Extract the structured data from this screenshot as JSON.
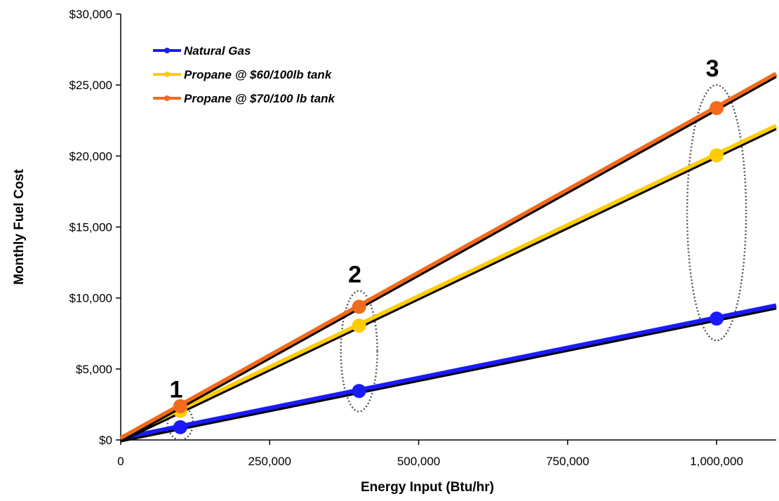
{
  "chart_data": {
    "type": "line",
    "xlabel": "Energy Input (Btu/hr)",
    "ylabel": "Monthly Fuel Cost",
    "xlim": [
      0,
      1100000
    ],
    "ylim": [
      0,
      30000
    ],
    "x_ticks": [
      0,
      250000,
      500000,
      750000,
      1000000
    ],
    "x_tick_labels": [
      "0",
      "250,000",
      "500,000",
      "750,000",
      "1,000,000"
    ],
    "y_ticks": [
      0,
      5000,
      10000,
      15000,
      20000,
      25000,
      30000
    ],
    "y_tick_labels": [
      "$0",
      "$5,000",
      "$10,000",
      "$15,000",
      "$20,000",
      "$25,000",
      "$30,000"
    ],
    "grid": false,
    "legend_position": "top-left",
    "series": [
      {
        "name": "Natural Gas",
        "color": "#1a1aff",
        "x": [
          0,
          100000,
          400000,
          1000000,
          1100000
        ],
        "y": [
          0,
          850,
          3400,
          8500,
          9350
        ],
        "markers_at": [
          100000,
          400000,
          1000000
        ]
      },
      {
        "name": "Propane @ $60/100lb tank",
        "color": "#ffcc00",
        "x": [
          0,
          100000,
          400000,
          1000000,
          1100000
        ],
        "y": [
          0,
          2000,
          8000,
          20000,
          22000
        ],
        "markers_at": [
          100000,
          400000,
          1000000
        ]
      },
      {
        "name": "Propane @ $70/100 lb tank",
        "color": "#f26a1b",
        "x": [
          0,
          100000,
          400000,
          1000000,
          1100000
        ],
        "y": [
          0,
          2330,
          9330,
          23330,
          25670
        ],
        "markers_at": [
          100000,
          400000,
          1000000
        ]
      }
    ],
    "annotations": [
      {
        "label": "1",
        "x": 100000,
        "y_range": [
          0,
          2400
        ]
      },
      {
        "label": "2",
        "x": 400000,
        "y_range": [
          2000,
          10500
        ]
      },
      {
        "label": "3",
        "x": 1000000,
        "y_range": [
          7000,
          25000
        ]
      }
    ]
  }
}
